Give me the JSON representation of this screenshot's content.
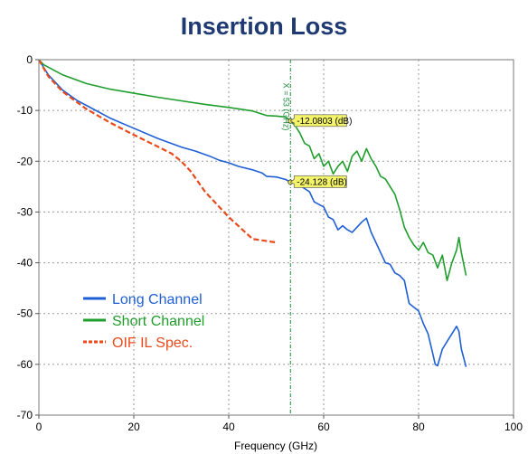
{
  "chart_data": {
    "type": "line",
    "title": "Insertion Loss",
    "xlabel": "Frequency (GHz)",
    "ylabel": "",
    "xlim": [
      0,
      100
    ],
    "ylim": [
      -70,
      0
    ],
    "x_ticks": [
      "0",
      "20",
      "40",
      "60",
      "80",
      "100"
    ],
    "y_ticks": [
      "0",
      "-10",
      "-20",
      "-30",
      "-40",
      "-50",
      "-60",
      "-70"
    ],
    "grid": true,
    "legend_position": "bottom-left",
    "series": [
      {
        "name": "Long Channel",
        "color": "#1f5fd6",
        "style": "solid",
        "x": [
          0,
          2,
          5,
          8,
          10,
          15,
          20,
          25,
          30,
          33,
          36,
          38,
          40,
          42,
          45,
          47,
          48,
          50,
          52,
          53,
          55,
          57,
          58,
          60,
          61,
          62,
          63,
          64,
          65,
          66,
          67,
          68,
          69,
          70,
          71,
          72,
          73,
          74,
          75,
          76,
          77,
          78,
          80,
          81,
          82,
          83,
          83.5,
          84,
          85,
          86,
          87,
          88,
          88.5,
          89,
          90
        ],
        "y": [
          0,
          -3,
          -6,
          -8,
          -9,
          -11.5,
          -13.5,
          -15.5,
          -17.2,
          -18,
          -19,
          -19.8,
          -20.3,
          -21,
          -21.7,
          -22.3,
          -23,
          -23.1,
          -23.6,
          -24.1,
          -24.8,
          -26,
          -28,
          -29,
          -31,
          -31.5,
          -33.5,
          -32.7,
          -33.5,
          -34,
          -33,
          -32,
          -31.2,
          -34,
          -36,
          -38,
          -40,
          -40.3,
          -42,
          -42.5,
          -43.5,
          -48,
          -49.5,
          -52,
          -54,
          -58,
          -60,
          -60.3,
          -57,
          -55.5,
          -54,
          -52.5,
          -53.5,
          -57,
          -60.5
        ]
      },
      {
        "name": "Short Channel",
        "color": "#1f9e2c",
        "style": "solid",
        "x": [
          0,
          1,
          3,
          5,
          10,
          15,
          20,
          25,
          30,
          35,
          40,
          45,
          48,
          50,
          52,
          53,
          54,
          55,
          56,
          57,
          58,
          59,
          60,
          61,
          62,
          63,
          64,
          65,
          66,
          67,
          68,
          69,
          70,
          71,
          72,
          73,
          74,
          75,
          76,
          77,
          78,
          79,
          80,
          81,
          82,
          83,
          84,
          85,
          86,
          87,
          88,
          88.5,
          89,
          90
        ],
        "y": [
          0,
          -1,
          -2,
          -3,
          -4.7,
          -5.8,
          -6.6,
          -7.4,
          -8.1,
          -8.8,
          -9.4,
          -10.1,
          -11,
          -11.1,
          -11.3,
          -12.1,
          -13,
          -14.5,
          -16.5,
          -17,
          -19.5,
          -18.5,
          -21,
          -20,
          -22.5,
          -21,
          -20,
          -22,
          -19,
          -18,
          -20,
          -17.5,
          -19.5,
          -21,
          -23,
          -23.5,
          -25,
          -26.5,
          -29.5,
          -33,
          -35,
          -36.5,
          -37.5,
          -36,
          -38,
          -38.5,
          -41,
          -38.5,
          -43.5,
          -40,
          -37.5,
          -35,
          -38,
          -42.5
        ]
      },
      {
        "name": "OIF IL Spec.",
        "color": "#e84a1c",
        "style": "dashed",
        "x": [
          0,
          2,
          5,
          10,
          15,
          20,
          25,
          28,
          30,
          32,
          35,
          40,
          45,
          50
        ],
        "y": [
          0,
          -3.3,
          -6.3,
          -9.7,
          -12.4,
          -14.8,
          -17.1,
          -18.5,
          -20,
          -22,
          -26,
          -31,
          -35.3,
          -36
        ]
      }
    ],
    "annotations": [
      {
        "text": "X = 53 (GHz)",
        "x": 53
      },
      {
        "text": "-12.0803 (dB)",
        "x": 53,
        "y": -12.0803
      },
      {
        "text": "-24.128 (dB)",
        "x": 53,
        "y": -24.128
      }
    ]
  }
}
